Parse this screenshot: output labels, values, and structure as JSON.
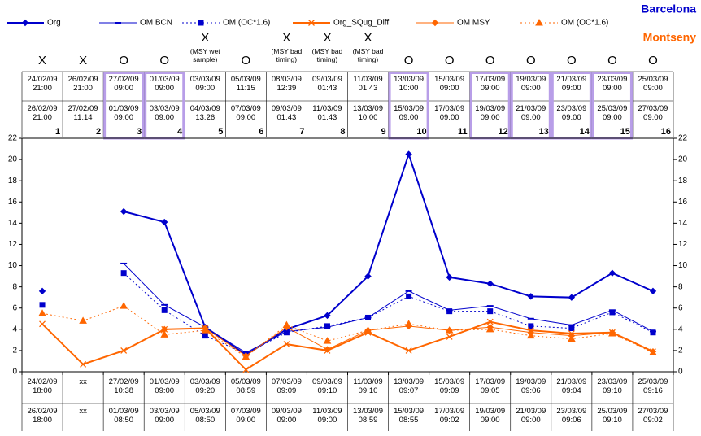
{
  "chart_data": {
    "type": "line",
    "labels_right": [
      {
        "text": "Barcelona",
        "color": "#0000cc"
      },
      {
        "text": "Montseny",
        "color": "#ff6600"
      }
    ],
    "categories": [
      1,
      2,
      3,
      4,
      5,
      6,
      7,
      8,
      9,
      10,
      11,
      12,
      13,
      14,
      15,
      16
    ],
    "status": [
      "X",
      "X",
      "O",
      "O",
      "X",
      "O",
      "X",
      "X",
      "X",
      "O",
      "O",
      "O",
      "O",
      "O",
      "O",
      "O"
    ],
    "notes": [
      null,
      null,
      null,
      null,
      "(MSY wet sample)",
      null,
      "(MSY bad timing)",
      "(MSY bad timing)",
      "(MSY bad timing)",
      null,
      null,
      null,
      null,
      null,
      null,
      null
    ],
    "highlight": [
      3,
      4,
      10,
      12,
      13,
      14,
      15
    ],
    "highlight_color": "#b89ee8",
    "top_start": [
      "24/02/09 21:00",
      "26/02/09 21:00",
      "27/02/09 09:00",
      "01/03/09 09:00",
      "03/03/09 09:00",
      "05/03/09 11:15",
      "08/03/09 12:39",
      "09/03/09 01:43",
      "11/03/09 01:43",
      "13/03/09 10:00",
      "15/03/09 09:00",
      "17/03/09 09:00",
      "19/03/09 09:00",
      "21/03/09 09:00",
      "23/03/09 09:00",
      "25/03/09 09:00"
    ],
    "top_end": [
      "26/02/09 21:00",
      "27/02/09 11:14",
      "01/03/09 09:00",
      "03/03/09 09:00",
      "04/03/09 13:26",
      "07/03/09 09:00",
      "09/03/09 01:43",
      "11/03/09 01:43",
      "13/03/09 10:00",
      "15/03/09 09:00",
      "17/03/09 09:00",
      "19/03/09 09:00",
      "21/03/09 09:00",
      "23/03/09 09:00",
      "25/03/09 09:00",
      "27/03/09 09:00"
    ],
    "bottom_start": [
      "24/02/09 18:00",
      "xx",
      "27/02/09 10:38",
      "01/03/09 09:00",
      "03/03/09 09:20",
      "05/03/09 08:59",
      "07/03/09 09:09",
      "09/03/09 09:10",
      "11/03/09 09:10",
      "13/03/09 09:07",
      "15/03/09 09:09",
      "17/03/09 09:05",
      "19/03/09 09:06",
      "21/03/09 09:04",
      "23/03/09 09:10",
      "25/03/09 09:16"
    ],
    "bottom_end": [
      "26/02/09 18:00",
      "xx",
      "01/03/09 08:50",
      "03/03/09 09:00",
      "05/03/09 08:50",
      "07/03/09 09:00",
      "09/03/09 09:00",
      "11/03/09 09:00",
      "13/03/09 08:59",
      "15/03/09 08:55",
      "17/03/09 09:02",
      "19/03/09 09:00",
      "21/03/09 09:00",
      "23/03/09 09:06",
      "25/03/09 09:10",
      "27/03/09 09:02"
    ],
    "series": [
      {
        "name": "Org",
        "color": "#0000cc",
        "marker": "diamond",
        "dash": "solid",
        "width": 2,
        "values": [
          7.6,
          null,
          15.1,
          14.1,
          4.2,
          1.6,
          4.0,
          5.3,
          9.0,
          20.5,
          8.9,
          8.3,
          7.1,
          7.0,
          9.3,
          7.6
        ]
      },
      {
        "name": "OM BCN",
        "color": "#0000cc",
        "marker": "dash",
        "dash": "solid",
        "width": 1,
        "values": [
          null,
          null,
          10.2,
          6.3,
          4.2,
          1.8,
          3.8,
          4.2,
          5.1,
          7.6,
          5.8,
          6.2,
          5.0,
          4.4,
          5.8,
          3.8
        ]
      },
      {
        "name": "OM (OC*1.6)",
        "color": "#0000cc",
        "marker": "square",
        "dash": "dotted",
        "width": 1,
        "values": [
          6.3,
          null,
          9.3,
          5.8,
          3.4,
          1.7,
          3.7,
          4.3,
          5.1,
          7.1,
          5.7,
          5.7,
          4.3,
          4.1,
          5.6,
          3.7
        ]
      },
      {
        "name": "Org_SQug_Diff",
        "color": "#ff6600",
        "marker": "x",
        "dash": "solid",
        "width": 2,
        "values": [
          4.5,
          0.7,
          2.0,
          4.0,
          4.1,
          0.2,
          2.6,
          2.0,
          3.7,
          2.0,
          3.3,
          4.7,
          3.9,
          3.6,
          3.7,
          1.9
        ]
      },
      {
        "name": "OM MSY",
        "color": "#ff6600",
        "marker": "diamond",
        "dash": "solid",
        "width": 1,
        "values": [
          null,
          null,
          null,
          4.0,
          4.1,
          1.5,
          4.2,
          2.1,
          3.9,
          4.3,
          3.9,
          4.2,
          3.7,
          3.4,
          3.7,
          1.9
        ]
      },
      {
        "name": "OM (OC*1.6)",
        "color": "#ff6600",
        "marker": "triangle",
        "dash": "dotted",
        "width": 1,
        "values": [
          5.5,
          4.8,
          6.2,
          3.5,
          3.9,
          1.4,
          4.4,
          2.9,
          3.9,
          4.5,
          3.9,
          4.0,
          3.4,
          3.1,
          3.6,
          1.8
        ]
      }
    ],
    "ylim": [
      0,
      22
    ],
    "yticks": [
      0,
      2,
      4,
      6,
      8,
      10,
      12,
      14,
      16,
      18,
      20,
      22
    ],
    "y2lim": [
      0,
      22
    ],
    "y2ticks": [
      0,
      2,
      4,
      6,
      8,
      10,
      12,
      14,
      16,
      18,
      20,
      22
    ]
  }
}
